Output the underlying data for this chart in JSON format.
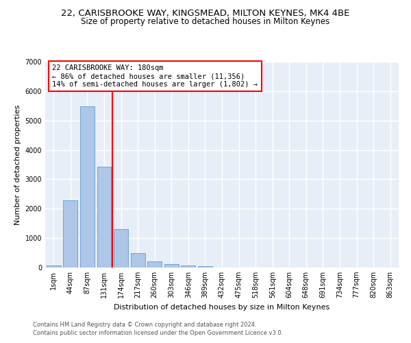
{
  "title_line1": "22, CARISBROOKE WAY, KINGSMEAD, MILTON KEYNES, MK4 4BE",
  "title_line2": "Size of property relative to detached houses in Milton Keynes",
  "xlabel": "Distribution of detached houses by size in Milton Keynes",
  "ylabel": "Number of detached properties",
  "footer_line1": "Contains HM Land Registry data © Crown copyright and database right 2024.",
  "footer_line2": "Contains public sector information licensed under the Open Government Licence v3.0.",
  "bin_labels": [
    "1sqm",
    "44sqm",
    "87sqm",
    "131sqm",
    "174sqm",
    "217sqm",
    "260sqm",
    "303sqm",
    "346sqm",
    "389sqm",
    "432sqm",
    "475sqm",
    "518sqm",
    "561sqm",
    "604sqm",
    "648sqm",
    "691sqm",
    "734sqm",
    "777sqm",
    "820sqm",
    "863sqm"
  ],
  "bar_values": [
    75,
    2280,
    5480,
    3420,
    1300,
    490,
    200,
    110,
    65,
    40,
    0,
    0,
    0,
    0,
    0,
    0,
    0,
    0,
    0,
    0,
    0
  ],
  "bar_color": "#aec6e8",
  "bar_edge_color": "#5b9bd5",
  "vline_x_index": 3.5,
  "vline_color": "red",
  "annotation_text": "22 CARISBROOKE WAY: 180sqm\n← 86% of detached houses are smaller (11,356)\n14% of semi-detached houses are larger (1,802) →",
  "ylim": [
    0,
    7000
  ],
  "bg_color": "#e8eef8",
  "grid_color": "white",
  "title1_fontsize": 9.5,
  "title2_fontsize": 8.5,
  "xlabel_fontsize": 8,
  "ylabel_fontsize": 8,
  "tick_fontsize": 7,
  "footer_fontsize": 6,
  "annot_fontsize": 7.5
}
